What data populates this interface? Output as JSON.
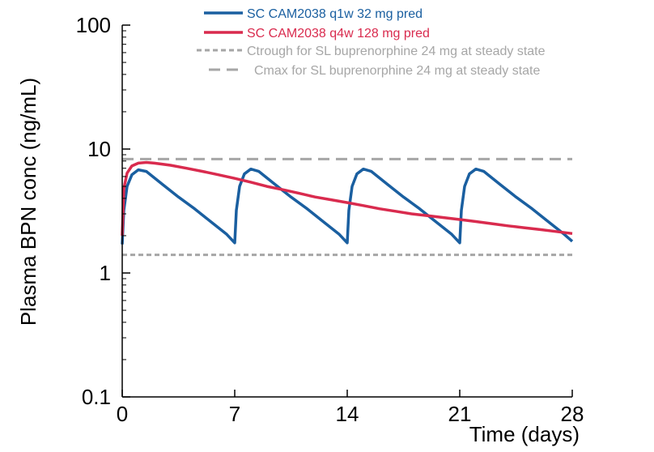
{
  "chart_data": {
    "type": "line",
    "title": "",
    "xlabel": "Time (days)",
    "ylabel": "Plasma BPN conc (ng/mL)",
    "xlim": [
      0,
      28
    ],
    "ylim": [
      0.1,
      100
    ],
    "yscale": "log",
    "xticks": [
      0,
      7,
      14,
      21,
      28
    ],
    "yticks": [
      0.1,
      1,
      10,
      100
    ],
    "xtick_labels": [
      "0",
      "7",
      "14",
      "21",
      "28"
    ],
    "ytick_labels": [
      "0.1",
      "1",
      "10",
      "100"
    ],
    "grid": false,
    "legend_position": "top-right",
    "series": [
      {
        "name": "SC CAM2038 q1w 32 mg pred",
        "color": "#1a5fa0",
        "style": "solid",
        "x": [
          0,
          0.1,
          0.3,
          0.6,
          1.0,
          1.5,
          2.5,
          3.5,
          4.5,
          5.5,
          6.5,
          7.0,
          7.1,
          7.3,
          7.6,
          8.0,
          8.5,
          9.5,
          10.5,
          11.5,
          12.5,
          13.5,
          14.0,
          14.1,
          14.3,
          14.6,
          15.0,
          15.5,
          16.5,
          17.5,
          18.5,
          19.5,
          20.5,
          21.0,
          21.1,
          21.3,
          21.6,
          22.0,
          22.5,
          23.5,
          24.5,
          25.5,
          26.5,
          27.5,
          28.0
        ],
        "y": [
          1.7,
          3.2,
          5.0,
          6.2,
          6.8,
          6.6,
          5.2,
          4.1,
          3.3,
          2.6,
          2.05,
          1.75,
          3.2,
          5.0,
          6.3,
          6.9,
          6.6,
          5.2,
          4.1,
          3.3,
          2.6,
          2.05,
          1.75,
          3.2,
          5.0,
          6.3,
          6.9,
          6.6,
          5.2,
          4.1,
          3.3,
          2.6,
          2.05,
          1.75,
          3.2,
          5.0,
          6.3,
          6.9,
          6.6,
          5.2,
          4.1,
          3.3,
          2.6,
          2.05,
          1.8
        ]
      },
      {
        "name": "SC CAM2038 q4w 128 mg pred",
        "color": "#d92b4e",
        "style": "solid",
        "x": [
          0,
          0.1,
          0.3,
          0.6,
          1.0,
          1.5,
          2.0,
          3.0,
          4.0,
          5.0,
          6.0,
          7.0,
          8.0,
          9.0,
          10.0,
          11.0,
          12.0,
          13.0,
          14.0,
          15.0,
          16.0,
          17.0,
          18.0,
          19.0,
          20.0,
          21.0,
          22.0,
          23.0,
          24.0,
          25.0,
          26.0,
          27.0,
          28.0
        ],
        "y": [
          2.0,
          4.8,
          6.4,
          7.3,
          7.7,
          7.8,
          7.7,
          7.4,
          7.0,
          6.6,
          6.2,
          5.8,
          5.4,
          5.0,
          4.7,
          4.4,
          4.1,
          3.9,
          3.7,
          3.5,
          3.3,
          3.15,
          3.0,
          2.9,
          2.8,
          2.7,
          2.6,
          2.5,
          2.4,
          2.32,
          2.24,
          2.16,
          2.08
        ]
      },
      {
        "name": "Ctrough for SL buprenorphine 24 mg at steady state",
        "color": "#a6a6a6",
        "style": "dotted",
        "x": [
          0,
          28
        ],
        "y": [
          1.4,
          1.4
        ]
      },
      {
        "name": "Cmax for SL buprenorphine 24 mg at steady state",
        "color": "#a6a6a6",
        "style": "dashed",
        "x": [
          0,
          28
        ],
        "y": [
          8.3,
          8.3
        ]
      }
    ]
  }
}
